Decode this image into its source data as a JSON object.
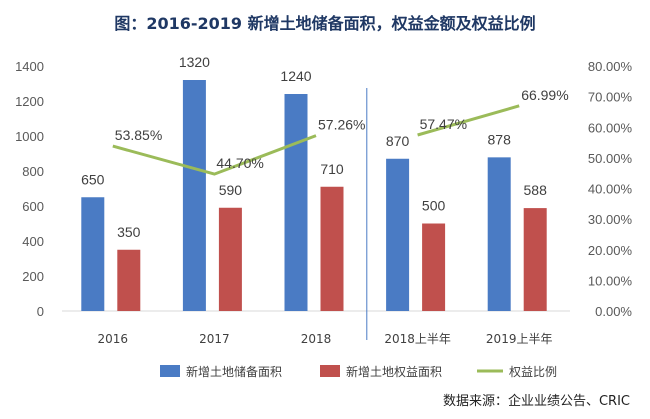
{
  "chart_data": {
    "type": "bar",
    "title": "图：2016-2019 新增土地储备面积，权益金额及权益比例",
    "categories": [
      "2016",
      "2017",
      "2018",
      "2018上半年",
      "2019上半年"
    ],
    "series": [
      {
        "name": "新增土地储备面积",
        "type": "bar",
        "axis": "left",
        "color": "#4a7bc4",
        "values": [
          650,
          1320,
          1240,
          870,
          878
        ]
      },
      {
        "name": "新增土地权益面积",
        "type": "bar",
        "axis": "left",
        "color": "#c0504d",
        "values": [
          350,
          590,
          710,
          500,
          588
        ]
      },
      {
        "name": "权益比例",
        "type": "line",
        "axis": "right",
        "color": "#9bbb59",
        "values": [
          53.85,
          44.7,
          57.26,
          57.47,
          66.99
        ],
        "labels": [
          "53.85%",
          "44.70%",
          "57.26%",
          "57.47%",
          "66.99%"
        ]
      }
    ],
    "y_left": {
      "range": [
        0,
        1400
      ],
      "ticks": [
        "0",
        "200",
        "400",
        "600",
        "800",
        "1000",
        "1200",
        "1400"
      ]
    },
    "y_right": {
      "range": [
        0,
        80
      ],
      "ticks": [
        "0.00%",
        "10.00%",
        "20.00%",
        "30.00%",
        "40.00%",
        "50.00%",
        "60.00%",
        "70.00%",
        "80.00%"
      ]
    },
    "line_segments": [
      [
        0,
        1,
        2
      ],
      [
        3,
        4
      ]
    ],
    "separator_after_index": 2,
    "grid": false,
    "legend_position": "bottom"
  },
  "source_note": "数据来源：企业业绩公告、CRIC"
}
